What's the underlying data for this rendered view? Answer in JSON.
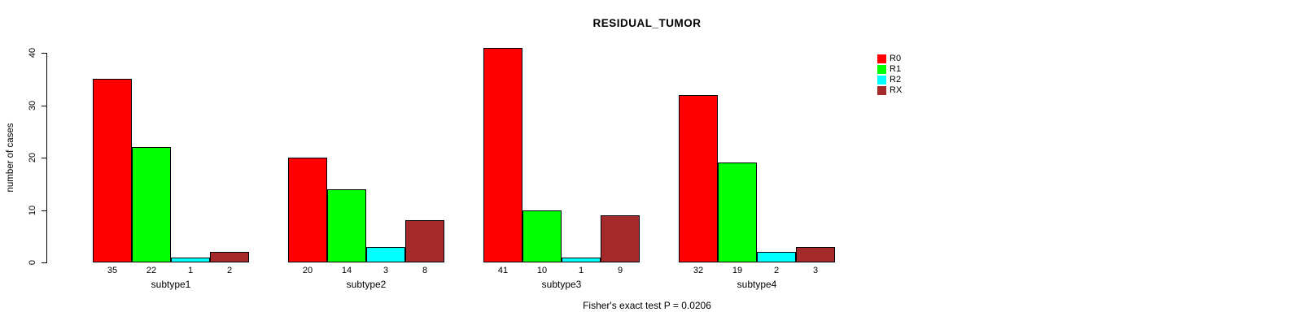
{
  "chart": {
    "title": "RESIDUAL_TUMOR",
    "ylabel": "number of cases",
    "caption": "Fisher's exact test P = 0.0206"
  },
  "chart_data": {
    "type": "bar",
    "grouped": true,
    "title": "RESIDUAL_TUMOR",
    "xlabel": "",
    "ylabel": "number of cases",
    "caption": "Fisher's exact test P = 0.0206",
    "categories": [
      "subtype1",
      "subtype2",
      "subtype3",
      "subtype4"
    ],
    "series": [
      {
        "name": "R0",
        "color": "#FF0000",
        "values": [
          35,
          20,
          41,
          32
        ]
      },
      {
        "name": "R1",
        "color": "#00FF00",
        "values": [
          22,
          14,
          10,
          19
        ]
      },
      {
        "name": "R2",
        "color": "#00FFFF",
        "values": [
          1,
          3,
          1,
          2
        ]
      },
      {
        "name": "RX",
        "color": "#A52A2A",
        "values": [
          2,
          8,
          9,
          3
        ]
      }
    ],
    "ylim": [
      0,
      40
    ],
    "y_ticks": [
      0,
      10,
      20,
      30,
      40
    ],
    "grid": false,
    "bar_value_labels_shown": true,
    "legend_position": "top-right"
  }
}
